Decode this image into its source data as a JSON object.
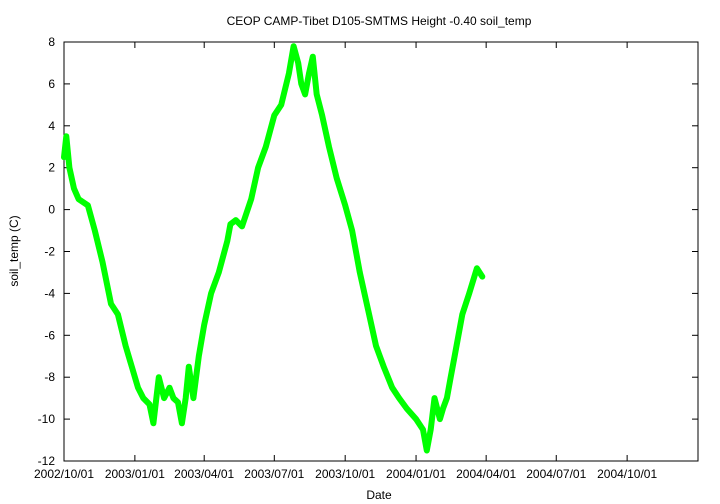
{
  "chart_data": {
    "type": "line",
    "title": "CEOP CAMP-Tibet D105-SMTMS Height -0.40 soil_temp",
    "xlabel": "Date",
    "ylabel": "soil_temp (C)",
    "x_axis_type": "date",
    "xlim": [
      "2002-10-01",
      "2005-01-01"
    ],
    "ylim": [
      -12,
      8
    ],
    "grid": false,
    "legend": "none",
    "series_color": "#00ff00",
    "x_tick_labels": [
      "2002/10/01",
      "2003/01/01",
      "2003/04/01",
      "2003/07/01",
      "2003/10/01",
      "2004/01/01",
      "2004/04/01",
      "2004/07/01",
      "2004/10/01"
    ],
    "y_tick_labels": [
      "-12",
      "-10",
      "-8",
      "-6",
      "-4",
      "-2",
      "0",
      "2",
      "4",
      "6",
      "8"
    ],
    "series": [
      {
        "x": [
          "2002-10-01",
          "2002-10-04",
          "2002-10-08",
          "2002-10-14",
          "2002-10-20",
          "2002-11-01",
          "2002-11-10",
          "2002-11-20",
          "2002-12-01",
          "2002-12-10",
          "2002-12-20",
          "2002-12-28",
          "2003-01-05",
          "2003-01-12",
          "2003-01-20",
          "2003-01-25",
          "2003-02-01",
          "2003-02-08",
          "2003-02-15",
          "2003-02-20",
          "2003-02-26",
          "2003-03-03",
          "2003-03-08",
          "2003-03-12",
          "2003-03-18",
          "2003-03-25",
          "2003-04-01",
          "2003-04-10",
          "2003-04-20",
          "2003-05-01",
          "2003-05-05",
          "2003-05-12",
          "2003-05-20",
          "2003-06-01",
          "2003-06-10",
          "2003-06-20",
          "2003-07-01",
          "2003-07-10",
          "2003-07-20",
          "2003-07-26",
          "2003-08-01",
          "2003-08-05",
          "2003-08-10",
          "2003-08-15",
          "2003-08-20",
          "2003-08-25",
          "2003-09-01",
          "2003-09-10",
          "2003-09-20",
          "2003-10-01",
          "2003-10-10",
          "2003-10-20",
          "2003-11-01",
          "2003-11-10",
          "2003-11-20",
          "2003-12-01",
          "2003-12-10",
          "2003-12-20",
          "2004-01-01",
          "2004-01-10",
          "2004-01-15",
          "2004-01-20",
          "2004-01-25",
          "2004-02-01",
          "2004-02-05",
          "2004-02-10",
          "2004-02-15",
          "2004-02-20",
          "2004-03-01",
          "2004-03-10",
          "2004-03-20",
          "2004-03-27"
        ],
        "y": [
          2.5,
          3.5,
          2.0,
          1.0,
          0.5,
          0.2,
          -1.0,
          -2.5,
          -4.5,
          -5.0,
          -6.5,
          -7.5,
          -8.5,
          -9.0,
          -9.3,
          -10.2,
          -8.0,
          -9.0,
          -8.5,
          -9.0,
          -9.2,
          -10.2,
          -9.0,
          -7.5,
          -9.0,
          -7.0,
          -5.5,
          -4.0,
          -3.0,
          -1.5,
          -0.7,
          -0.5,
          -0.8,
          0.5,
          2.0,
          3.0,
          4.5,
          5.0,
          6.5,
          7.8,
          7.0,
          6.0,
          5.5,
          6.5,
          7.3,
          5.5,
          4.5,
          3.0,
          1.5,
          0.2,
          -1.0,
          -3.0,
          -5.0,
          -6.5,
          -7.5,
          -8.5,
          -9.0,
          -9.5,
          -10.0,
          -10.5,
          -11.5,
          -10.5,
          -9.0,
          -10.0,
          -9.5,
          -9.0,
          -8.0,
          -7.0,
          -5.0,
          -4.0,
          -2.8,
          -3.2
        ]
      }
    ]
  }
}
